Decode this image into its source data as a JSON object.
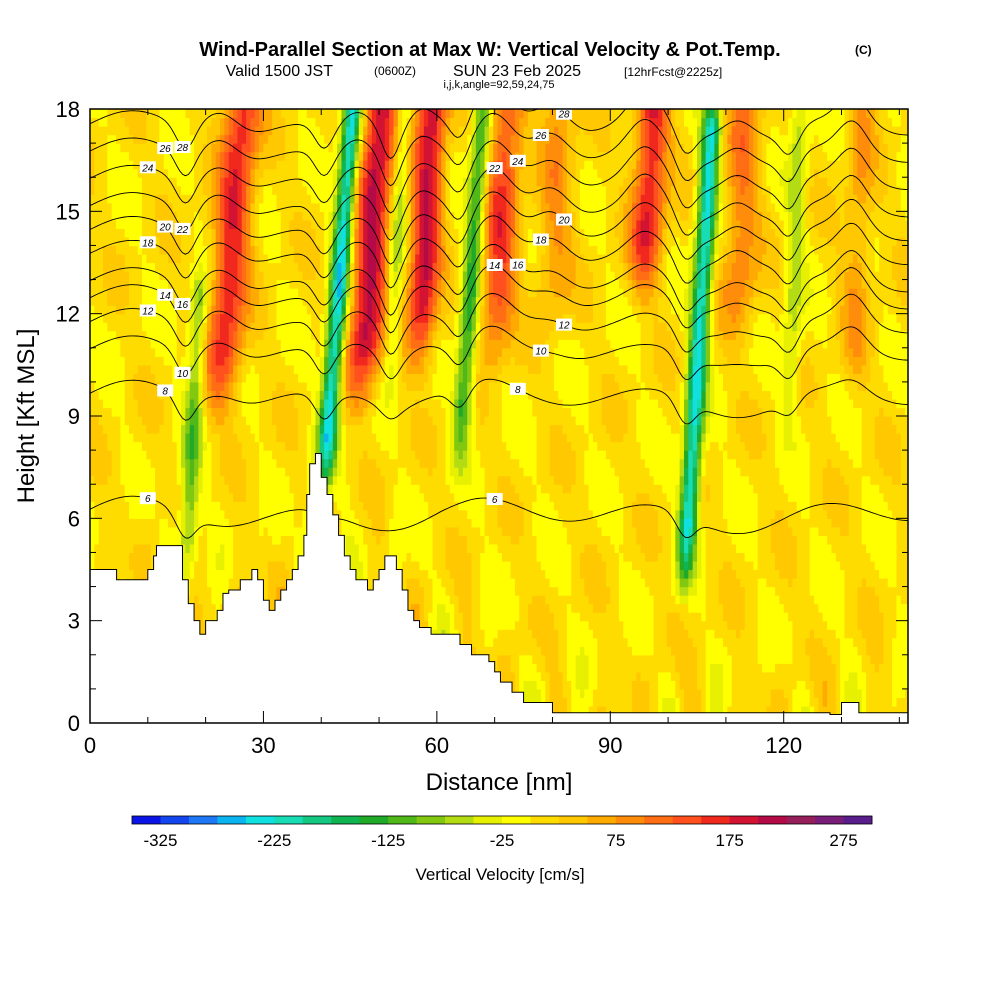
{
  "title": {
    "main": "Wind-Parallel Section at Max W: Vertical Velocity & Pot.Temp.",
    "copyright": "(C)",
    "valid_prefix": "Valid 1500 JST",
    "utc": "(0600Z)",
    "date": "SUN 23 Feb 2025",
    "forecast": "[12hrFcst@2225z]",
    "indices": "i,j,k,angle=92,59,24,75"
  },
  "chart_data": {
    "type": "heatmap",
    "xlabel": "Distance [nm]",
    "ylabel": "Height [Kft MSL]",
    "xlim": [
      0,
      141.5
    ],
    "ylim": [
      0,
      18
    ],
    "x_ticks": [
      0,
      30,
      60,
      90,
      120
    ],
    "y_ticks": [
      0,
      3,
      6,
      9,
      12,
      15,
      18
    ],
    "colorbar": {
      "title": "Vertical Velocity [cm/s]",
      "min": -350,
      "max": 300,
      "step": 25,
      "tick_values": [
        -325,
        -225,
        -125,
        -25,
        75,
        175,
        275
      ],
      "tick_labels": [
        "-325",
        "-225",
        "-125",
        "-25",
        "75",
        "175",
        "275"
      ],
      "colors": [
        "#0a14e6",
        "#1446f0",
        "#1e78f5",
        "#0ab4f0",
        "#10e0e0",
        "#18dcb4",
        "#14c882",
        "#10b450",
        "#20aa28",
        "#50b818",
        "#82c810",
        "#b4dc14",
        "#e6f000",
        "#ffff00",
        "#ffdc00",
        "#ffc800",
        "#ffaa00",
        "#ff8c0a",
        "#ff6e14",
        "#ff501e",
        "#f0281e",
        "#d21432",
        "#b40a46",
        "#961e5a",
        "#781e78",
        "#5a1e8c"
      ]
    },
    "columns": [
      {
        "x": 16.5,
        "w": -110,
        "bottom": 4.2,
        "top": 12.5,
        "width": 1.6,
        "tilt": 0.3
      },
      {
        "x": 22.5,
        "w": 160,
        "bottom": 9.5,
        "top": 18,
        "width": 3.2,
        "tilt": 0.45
      },
      {
        "x": 40.5,
        "w": -250,
        "bottom": 7.0,
        "top": 18,
        "width": 1.6,
        "tilt": 0.45
      },
      {
        "x": 47,
        "w": 200,
        "bottom": 9.8,
        "top": 18,
        "width": 3.0,
        "tilt": 0.4
      },
      {
        "x": 52,
        "w": -80,
        "bottom": 10.2,
        "top": 18,
        "width": 1.4,
        "tilt": 0.3
      },
      {
        "x": 57,
        "w": 190,
        "bottom": 10.8,
        "top": 18,
        "width": 2.6,
        "tilt": 0.3
      },
      {
        "x": 64,
        "w": -150,
        "bottom": 8.0,
        "top": 18,
        "width": 1.6,
        "tilt": 0.4
      },
      {
        "x": 70,
        "w": 140,
        "bottom": 11.0,
        "top": 18,
        "width": 3.0,
        "tilt": 0.3
      },
      {
        "x": 80,
        "w": 70,
        "bottom": 12.0,
        "top": 18,
        "width": 3.0,
        "tilt": 0.2
      },
      {
        "x": 96,
        "w": 170,
        "bottom": 13.0,
        "top": 18,
        "width": 2.8,
        "tilt": 0.3
      },
      {
        "x": 103,
        "w": -240,
        "bottom": 4.5,
        "top": 17.5,
        "width": 1.6,
        "tilt": 0.35
      },
      {
        "x": 112,
        "w": 90,
        "bottom": 11.5,
        "top": 18,
        "width": 3.0,
        "tilt": 0.2
      },
      {
        "x": 121,
        "w": -70,
        "bottom": 9.0,
        "top": 18,
        "width": 1.6,
        "tilt": 0.2
      },
      {
        "x": 132,
        "w": 60,
        "bottom": 10.0,
        "top": 18,
        "width": 2.4,
        "tilt": 0.2
      }
    ],
    "terrain": [
      [
        0,
        4.5
      ],
      [
        4.6,
        4.5
      ],
      [
        4.6,
        4.2
      ],
      [
        10,
        4.2
      ],
      [
        10,
        4.5
      ],
      [
        11,
        4.5
      ],
      [
        11,
        4.9
      ],
      [
        11.5,
        4.9
      ],
      [
        11.5,
        5.2
      ],
      [
        16,
        5.2
      ],
      [
        16,
        4.2
      ],
      [
        17,
        4.2
      ],
      [
        17,
        3.5
      ],
      [
        18,
        3.5
      ],
      [
        18,
        3.0
      ],
      [
        19,
        3.0
      ],
      [
        19,
        2.6
      ],
      [
        20,
        2.6
      ],
      [
        20,
        3.0
      ],
      [
        22,
        3.0
      ],
      [
        22,
        3.3
      ],
      [
        23,
        3.3
      ],
      [
        23,
        3.8
      ],
      [
        24,
        3.8
      ],
      [
        24,
        3.9
      ],
      [
        26,
        3.9
      ],
      [
        26,
        4.2
      ],
      [
        28,
        4.2
      ],
      [
        28,
        4.5
      ],
      [
        29,
        4.5
      ],
      [
        29,
        4.2
      ],
      [
        30,
        4.2
      ],
      [
        30,
        3.6
      ],
      [
        31,
        3.6
      ],
      [
        31,
        3.3
      ],
      [
        32,
        3.3
      ],
      [
        32,
        3.6
      ],
      [
        33,
        3.6
      ],
      [
        33,
        3.9
      ],
      [
        34,
        3.9
      ],
      [
        34,
        4.2
      ],
      [
        35,
        4.2
      ],
      [
        35,
        4.5
      ],
      [
        36,
        4.5
      ],
      [
        36,
        4.9
      ],
      [
        37,
        4.9
      ],
      [
        37,
        5.5
      ],
      [
        37.5,
        5.5
      ],
      [
        37.5,
        6.7
      ],
      [
        38,
        6.7
      ],
      [
        38,
        7.6
      ],
      [
        39,
        7.6
      ],
      [
        39,
        7.9
      ],
      [
        40,
        7.9
      ],
      [
        40,
        7.2
      ],
      [
        41,
        7.2
      ],
      [
        41,
        6.7
      ],
      [
        42,
        6.7
      ],
      [
        42,
        6.1
      ],
      [
        43,
        6.1
      ],
      [
        43,
        5.5
      ],
      [
        44,
        5.5
      ],
      [
        44,
        4.9
      ],
      [
        45,
        4.9
      ],
      [
        45,
        4.5
      ],
      [
        46,
        4.5
      ],
      [
        46,
        4.2
      ],
      [
        48,
        4.2
      ],
      [
        48,
        3.9
      ],
      [
        49,
        3.9
      ],
      [
        49,
        4.2
      ],
      [
        50,
        4.2
      ],
      [
        50,
        4.5
      ],
      [
        51,
        4.5
      ],
      [
        51,
        4.9
      ],
      [
        53,
        4.9
      ],
      [
        53,
        4.5
      ],
      [
        54,
        4.5
      ],
      [
        54,
        3.9
      ],
      [
        55,
        3.9
      ],
      [
        55,
        3.3
      ],
      [
        56,
        3.3
      ],
      [
        56,
        3.0
      ],
      [
        57,
        3.0
      ],
      [
        57,
        2.8
      ],
      [
        59,
        2.8
      ],
      [
        59,
        2.6
      ],
      [
        64,
        2.6
      ],
      [
        64,
        2.3
      ],
      [
        66,
        2.3
      ],
      [
        66,
        2.0
      ],
      [
        69,
        2.0
      ],
      [
        69,
        1.8
      ],
      [
        70,
        1.8
      ],
      [
        70,
        1.5
      ],
      [
        71,
        1.5
      ],
      [
        71,
        1.2
      ],
      [
        73,
        1.2
      ],
      [
        73,
        0.9
      ],
      [
        75,
        0.9
      ],
      [
        75,
        0.6
      ],
      [
        80,
        0.6
      ],
      [
        80,
        0.3
      ],
      [
        128,
        0.3
      ],
      [
        128,
        0.25
      ],
      [
        130,
        0.25
      ],
      [
        130,
        0.6
      ],
      [
        133,
        0.6
      ],
      [
        133,
        0.3
      ],
      [
        141.5,
        0.3
      ]
    ],
    "theta_contours": [
      {
        "base": 6.1,
        "label": "6"
      },
      {
        "base": 9.5,
        "label": "8"
      },
      {
        "base": 10.8,
        "label": "10"
      },
      {
        "base": 11.6,
        "label": "12"
      },
      {
        "base": 12.3,
        "label": "14"
      },
      {
        "base": 12.8,
        "label": "16"
      },
      {
        "base": 13.6,
        "label": "18"
      },
      {
        "base": 14.3,
        "label": "20"
      },
      {
        "base": 15.0,
        "label": "22"
      },
      {
        "base": 15.8,
        "label": "24"
      },
      {
        "base": 16.6,
        "label": "26"
      },
      {
        "base": 17.4,
        "label": "28"
      }
    ]
  }
}
